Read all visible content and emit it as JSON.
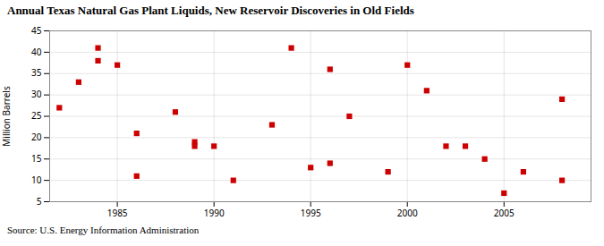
{
  "chart_data": {
    "type": "scatter",
    "title": "Annual Texas Natural Gas Plant Liquids,  New Reservoir Discoveries in Old Fields",
    "ylabel": "Million Barrels",
    "source": "Source: U.S. Energy Information Administration",
    "x": [
      1982,
      1983,
      1984,
      1984,
      1985,
      1986,
      1986,
      1988,
      1989,
      1989,
      1990,
      1991,
      1993,
      1994,
      1995,
      1996,
      1996,
      1997,
      1999,
      2000,
      2001,
      2002,
      2003,
      2004,
      2005,
      2006,
      2008,
      2008
    ],
    "values": [
      27,
      33,
      38,
      41,
      37,
      21,
      11,
      26,
      18,
      19,
      18,
      10,
      23,
      41,
      13,
      36,
      14,
      25,
      12,
      37,
      31,
      18,
      18,
      15,
      7,
      12,
      29,
      10
    ],
    "color": "#cc0000",
    "marker": "square",
    "xlim": [
      1981.5,
      2009.5
    ],
    "ylim": [
      5,
      45
    ],
    "xticks": [
      1985,
      1990,
      1995,
      2000,
      2005
    ],
    "yticks": [
      5,
      10,
      15,
      20,
      25,
      30,
      35,
      40,
      45
    ],
    "grid": true
  }
}
